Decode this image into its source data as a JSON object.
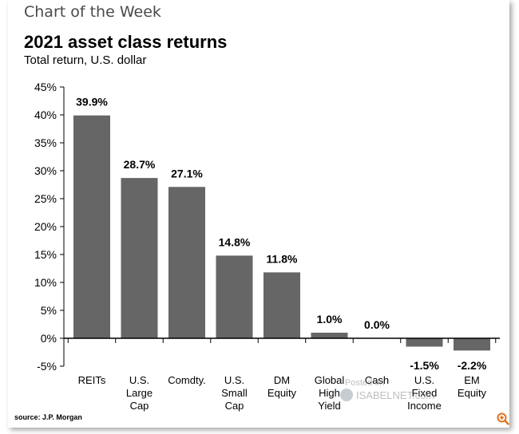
{
  "header": {
    "title": "Chart of the Week"
  },
  "chart_data": {
    "type": "bar",
    "title": "2021 asset class returns",
    "subtitle": "Total return, U.S. dollar",
    "categories": [
      [
        "REITs"
      ],
      [
        "U.S.",
        "Large",
        "Cap"
      ],
      [
        "Comdty."
      ],
      [
        "U.S.",
        "Small",
        "Cap"
      ],
      [
        "DM",
        "Equity"
      ],
      [
        "Global",
        "High",
        "Yield"
      ],
      [
        "Cash"
      ],
      [
        "U.S.",
        "Fixed",
        "Income"
      ],
      [
        "EM",
        "Equity"
      ]
    ],
    "values": [
      39.9,
      28.7,
      27.1,
      14.8,
      11.8,
      1.0,
      0.0,
      -1.5,
      -2.2
    ],
    "data_labels": [
      "39.9%",
      "28.7%",
      "27.1%",
      "14.8%",
      "11.8%",
      "1.0%",
      "0.0%",
      "-1.5%",
      "-2.2%"
    ],
    "ylim": [
      -5,
      45
    ],
    "yticks": [
      -5,
      0,
      5,
      10,
      15,
      20,
      25,
      30,
      35,
      40,
      45
    ],
    "ytick_labels": [
      "-5%",
      "0%",
      "5%",
      "10%",
      "15%",
      "20%",
      "25%",
      "30%",
      "35%",
      "40%",
      "45%"
    ],
    "xlabel": "",
    "ylabel": "",
    "grid": false,
    "bar_color": "#666666"
  },
  "footer": {
    "source": "source: J.P. Morgan"
  },
  "watermark": {
    "line1": "Posted on",
    "line2": "ISABELNET.com"
  },
  "icons": {
    "zoom": "zoom-in-icon"
  },
  "colors": {
    "bar": "#666666",
    "zoom_accent": "#e0701c"
  }
}
